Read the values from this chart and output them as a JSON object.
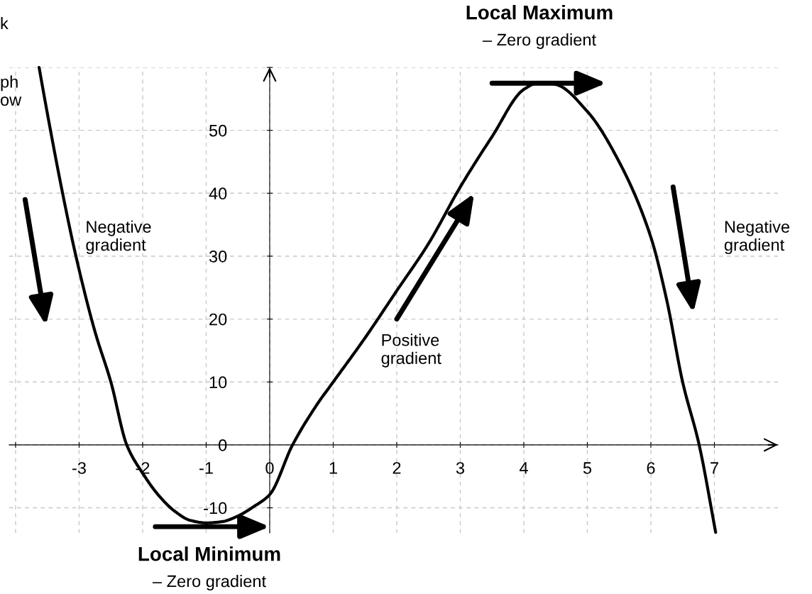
{
  "chart_data": {
    "type": "line",
    "x": [
      -3.63,
      -3.5,
      -3.26,
      -3.05,
      -2.75,
      -2.5,
      -2.25,
      -2.0,
      -1.75,
      -1.5,
      -1.25,
      -1.0,
      -0.75,
      -0.5,
      -0.25,
      0.0,
      0.36,
      0.75,
      1.0,
      1.5,
      2.0,
      2.5,
      3.0,
      3.5,
      4.0,
      4.25,
      4.5,
      5.0,
      5.5,
      6.0,
      6.25,
      6.5,
      6.76,
      7.02
    ],
    "series": [
      {
        "color": "#000000",
        "values": [
          60,
          52.7,
          40,
          30,
          18,
          10,
          0,
          -4.5,
          -8,
          -10.5,
          -12,
          -12.4,
          -12.2,
          -11.3,
          -9.8,
          -7.9,
          0,
          6.5,
          10,
          17,
          24.5,
          32,
          41,
          49,
          56.5,
          57.6,
          57.3,
          53,
          45,
          33,
          23,
          10,
          0,
          -13.9
        ]
      }
    ],
    "xlim": [
      -4.1,
      8
    ],
    "ylim": [
      -14,
      60
    ],
    "xticks": [
      {
        "value": -4,
        "label": null
      },
      -3,
      -2,
      -1,
      0,
      1,
      2,
      3,
      4,
      5,
      6,
      7
    ],
    "yticks": [
      -10,
      0,
      10,
      20,
      30,
      40,
      50,
      {
        "value": 60,
        "label": null
      }
    ],
    "grid": true,
    "annotations": [
      "k",
      "ph\now",
      "Negative\ngradient",
      "Positive\ngradient",
      "Negative\ngradient",
      "Local Maximum",
      "– Zero gradient",
      "Local Minimum",
      "– Zero gradient"
    ]
  }
}
